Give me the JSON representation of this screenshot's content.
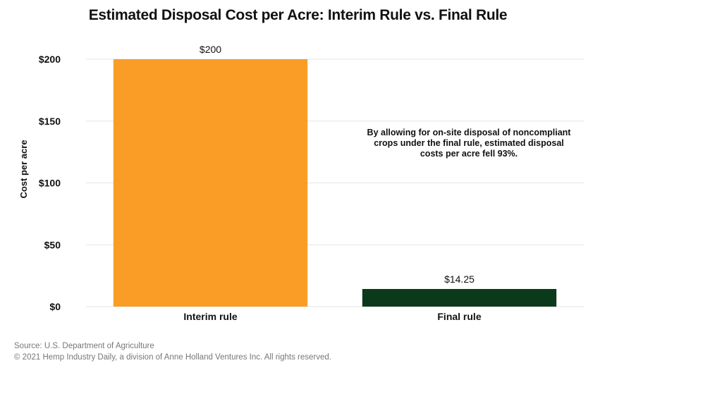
{
  "title": "Estimated Disposal Cost per Acre: Interim Rule vs. Final Rule",
  "annotation": "By allowing for on-site disposal of noncompliant crops under the final rule, estimated disposal costs per acre fell 93%.",
  "footer": {
    "source": "Source: U.S. Department of Agriculture",
    "copyright": "© 2021 Hemp Industry Daily, a division of Anne Holland Ventures Inc. All rights reserved."
  },
  "chart_data": {
    "type": "bar",
    "title": "Estimated Disposal Cost per Acre: Interim Rule vs. Final Rule",
    "xlabel": "",
    "ylabel": "Cost per acre",
    "categories": [
      "Interim rule",
      "Final rule"
    ],
    "values": [
      200,
      14.25
    ],
    "data_labels": [
      "$200",
      "$14.25"
    ],
    "colors": [
      "#F99D26",
      "#0B3A1B"
    ],
    "ylim": [
      0,
      200
    ],
    "yticks": [
      0,
      50,
      100,
      150,
      200
    ],
    "ytick_labels": [
      "$0",
      "$50",
      "$100",
      "$150",
      "$200"
    ],
    "grid": true,
    "legend": "none"
  }
}
